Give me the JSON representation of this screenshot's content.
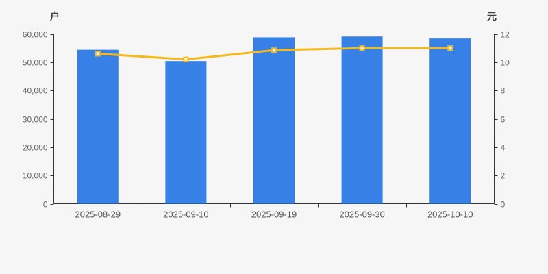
{
  "page": {
    "background": "#f6f6f7"
  },
  "chart_data": {
    "type": "bar",
    "subtype": "bar+line dual axis",
    "title": "",
    "categories": [
      "2025-08-29",
      "2025-09-10",
      "2025-09-19",
      "2025-09-30",
      "2025-10-10"
    ],
    "series": [
      {
        "name": "households-bars",
        "type": "bar",
        "axis": "left",
        "color": "#3781e6",
        "values": [
          54400,
          50400,
          58800,
          59100,
          58400
        ]
      },
      {
        "name": "price-line",
        "type": "line",
        "axis": "right",
        "color": "#f5b919",
        "marker": "hollow-square",
        "marker_fill": "#ffffff",
        "values": [
          10.6,
          10.2,
          10.85,
          11.0,
          11.0
        ]
      }
    ],
    "left_axis": {
      "title": "户",
      "min": 0,
      "max": 60000,
      "tick_interval": 10000,
      "tick_labels": [
        "0",
        "10,000",
        "20,000",
        "30,000",
        "40,000",
        "50,000",
        "60,000"
      ]
    },
    "right_axis": {
      "title": "元",
      "min": 0,
      "max": 12,
      "tick_interval": 2,
      "tick_labels": [
        "0",
        "2",
        "4",
        "6",
        "8",
        "10",
        "12"
      ]
    },
    "x_axis": {
      "label_color": "#555555"
    },
    "grid": false,
    "legend": null,
    "axis_line_color": "#333333",
    "tick_label_color": "#666666"
  }
}
